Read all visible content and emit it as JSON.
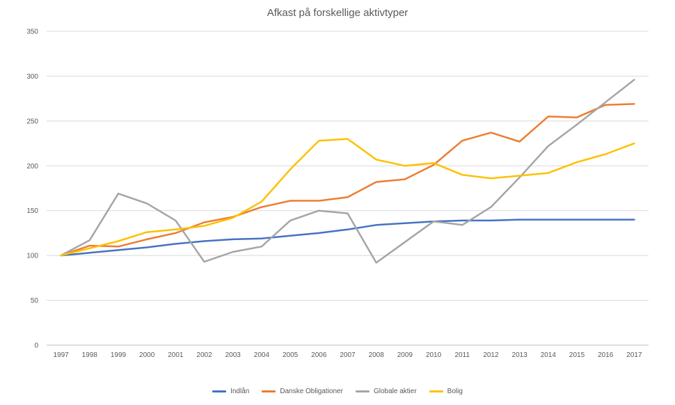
{
  "chart_data": {
    "type": "line",
    "title": "Afkast på forskellige aktivtyper",
    "xlabel": "",
    "ylabel": "",
    "ylim": [
      0,
      350
    ],
    "yticks": [
      0,
      50,
      100,
      150,
      200,
      250,
      300,
      350
    ],
    "grid": true,
    "legend_position": "bottom",
    "categories": [
      "1997",
      "1998",
      "1999",
      "2000",
      "2001",
      "2002",
      "2003",
      "2004",
      "2005",
      "2006",
      "2007",
      "2008",
      "2009",
      "2010",
      "2011",
      "2012",
      "2013",
      "2014",
      "2015",
      "2016",
      "2017"
    ],
    "series": [
      {
        "name": "Indlån",
        "color": "#4472C4",
        "values": [
          100,
          103,
          106,
          109,
          113,
          116,
          118,
          119,
          122,
          125,
          129,
          134,
          136,
          138,
          139,
          139,
          140,
          140,
          140,
          140,
          140
        ]
      },
      {
        "name": "Danske Obligationer",
        "color": "#ED7D31",
        "values": [
          100,
          111,
          110,
          118,
          125,
          137,
          143,
          154,
          161,
          161,
          165,
          182,
          185,
          201,
          228,
          237,
          227,
          255,
          254,
          268,
          269
        ]
      },
      {
        "name": "Globale aktier",
        "color": "#A5A5A5",
        "values": [
          100,
          117,
          169,
          158,
          139,
          93,
          104,
          110,
          139,
          150,
          147,
          92,
          115,
          138,
          134,
          154,
          187,
          222,
          246,
          271,
          296
        ]
      },
      {
        "name": "Bolig",
        "color": "#FFC000",
        "values": [
          100,
          108,
          116,
          126,
          129,
          133,
          142,
          160,
          196,
          228,
          230,
          207,
          200,
          203,
          190,
          186,
          189,
          192,
          204,
          213,
          225
        ]
      }
    ]
  }
}
